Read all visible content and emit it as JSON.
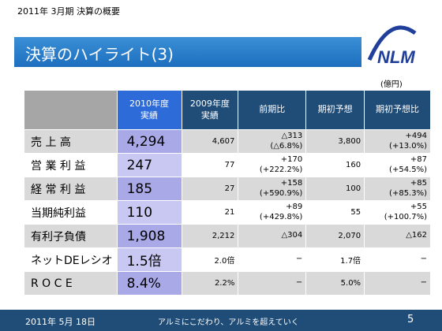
{
  "header": {
    "period": "2011年 3月期 決算の概要",
    "title": "決算のハイライト(3)",
    "logo_text": "NLM",
    "unit": "(億円)"
  },
  "table": {
    "columns": [
      "2010年度\n実績",
      "2009年度\n実績",
      "前期比",
      "期初予想",
      "期初予想比"
    ],
    "rows": [
      {
        "label": "売 上 高",
        "cur": "4,294",
        "prev": "4,607",
        "yoy1": "△313",
        "yoy2": "(△6.8%)",
        "fc": "3,800",
        "fyoy1": "+494",
        "fyoy2": "(+13.0%)"
      },
      {
        "label": "営 業 利 益",
        "cur": "247",
        "prev": "77",
        "yoy1": "+170",
        "yoy2": "(+222.2%)",
        "fc": "160",
        "fyoy1": "+87",
        "fyoy2": "(+54.5%)"
      },
      {
        "label": "経 常 利 益",
        "cur": "185",
        "prev": "27",
        "yoy1": "+158",
        "yoy2": "(+590.9%)",
        "fc": "100",
        "fyoy1": "+85",
        "fyoy2": "(+85.3%)"
      },
      {
        "label": "当期純利益",
        "cur": "110",
        "prev": "21",
        "yoy1": "+89",
        "yoy2": "(+429.8%)",
        "fc": "55",
        "fyoy1": "+55",
        "fyoy2": "(+100.7%)"
      },
      {
        "label": "有利子負債",
        "cur": "1,908",
        "prev": "2,212",
        "yoy1": "△304",
        "yoy2": "",
        "fc": "2,070",
        "fyoy1": "△162",
        "fyoy2": ""
      },
      {
        "label": "ネットDEレシオ",
        "cur": "1.5倍",
        "prev": "2.0倍",
        "yoy1": "−",
        "yoy2": "",
        "fc": "1.7倍",
        "fyoy1": "−",
        "fyoy2": ""
      },
      {
        "label": "R O C E",
        "cur": "8.4%",
        "prev": "2.2%",
        "yoy1": "−",
        "yoy2": "",
        "fc": "5.0%",
        "fyoy1": "−",
        "fyoy2": ""
      }
    ]
  },
  "footer": {
    "date": "2011年 5月 18日",
    "slogan": "アルミにこだわり、アルミを超えていく",
    "page": "5"
  }
}
